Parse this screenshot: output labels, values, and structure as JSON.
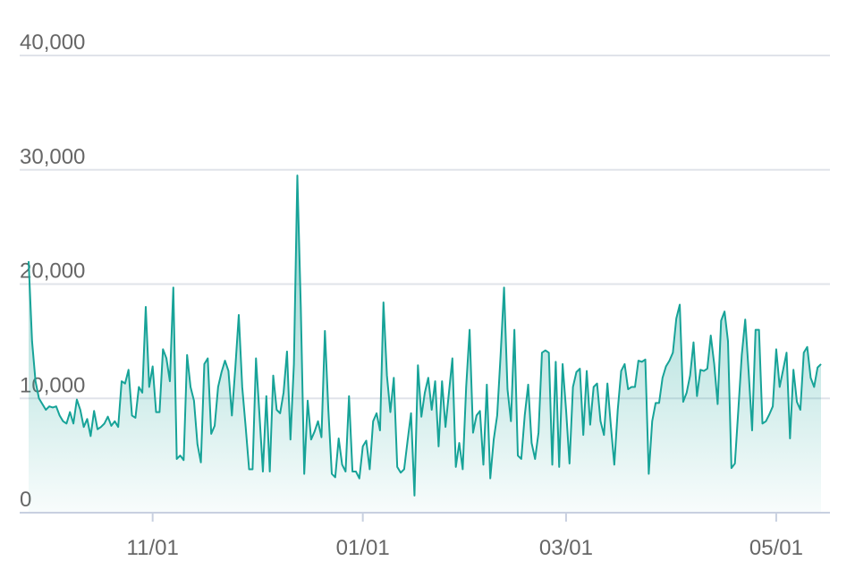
{
  "chart_data": {
    "type": "area",
    "color": "#17a398",
    "grid": true,
    "ylim": [
      0,
      40000
    ],
    "yticks": [
      0,
      {
        "value": 10000,
        "label": "10,000"
      },
      {
        "value": 20000,
        "label": "20,000"
      },
      {
        "value": 30000,
        "label": "30,000"
      },
      {
        "value": 40000,
        "label": "40,000"
      }
    ],
    "categories": [
      null,
      null,
      null,
      null,
      null,
      null,
      null,
      null,
      null,
      null,
      null,
      null,
      null,
      null,
      null,
      null,
      null,
      null,
      null,
      null,
      null,
      null,
      null,
      null,
      null,
      null,
      null,
      null,
      null,
      null,
      null,
      null,
      null,
      null,
      null,
      null,
      "11/01",
      null,
      null,
      null,
      null,
      null,
      null,
      null,
      null,
      null,
      null,
      null,
      null,
      null,
      null,
      null,
      null,
      null,
      null,
      null,
      null,
      null,
      null,
      null,
      null,
      null,
      null,
      null,
      null,
      null,
      null,
      null,
      null,
      null,
      null,
      null,
      null,
      null,
      null,
      null,
      null,
      null,
      null,
      null,
      null,
      null,
      null,
      null,
      null,
      null,
      null,
      null,
      null,
      null,
      null,
      null,
      null,
      null,
      null,
      null,
      null,
      "01/01",
      null,
      null,
      null,
      null,
      null,
      null,
      null,
      null,
      null,
      null,
      null,
      null,
      null,
      null,
      null,
      null,
      null,
      null,
      null,
      null,
      null,
      null,
      null,
      null,
      null,
      null,
      null,
      null,
      null,
      null,
      null,
      null,
      null,
      null,
      null,
      null,
      null,
      null,
      null,
      null,
      null,
      null,
      null,
      null,
      null,
      null,
      null,
      null,
      null,
      null,
      null,
      null,
      null,
      null,
      null,
      null,
      null,
      null,
      "03/01",
      null,
      null,
      null,
      null,
      null,
      null,
      null,
      null,
      null,
      null,
      null,
      null,
      null,
      null,
      null,
      null,
      null,
      null,
      null,
      null,
      null,
      null,
      null,
      null,
      null,
      null,
      null,
      null,
      null,
      null,
      null,
      null,
      null,
      null,
      null,
      null,
      null,
      null,
      null,
      null,
      null,
      null,
      null,
      null,
      null,
      null,
      null,
      null,
      null,
      null,
      null,
      null,
      null,
      null,
      null,
      null,
      null,
      null,
      null,
      null,
      "05/01",
      null,
      null,
      null,
      null,
      null,
      null,
      null,
      null,
      null,
      null,
      null,
      null,
      null
    ],
    "values": [
      22000,
      15000,
      11500,
      10000,
      9500,
      9000,
      9300,
      9200,
      9300,
      8500,
      8000,
      7800,
      8800,
      7800,
      9900,
      9000,
      7500,
      8200,
      6700,
      8900,
      7300,
      7500,
      7800,
      8400,
      7600,
      8000,
      7500,
      11500,
      11300,
      12500,
      8500,
      8300,
      11000,
      10500,
      18000,
      11000,
      12800,
      8800,
      8800,
      14300,
      13500,
      11500,
      19700,
      4700,
      5000,
      4600,
      13800,
      11000,
      9800,
      6000,
      4400,
      13000,
      13500,
      6900,
      7600,
      11000,
      12300,
      13300,
      12400,
      8500,
      12700,
      17300,
      11000,
      7500,
      3800,
      3800,
      13500,
      8600,
      3600,
      10200,
      3600,
      12000,
      9000,
      8700,
      10500,
      14100,
      6400,
      13000,
      29500,
      18000,
      3400,
      9800,
      6400,
      7100,
      8000,
      6600,
      15900,
      9000,
      3400,
      3100,
      6500,
      4200,
      3600,
      10200,
      3600,
      3600,
      3000,
      5800,
      6300,
      3800,
      8000,
      8700,
      7200,
      18400,
      12000,
      8800,
      11800,
      4000,
      3500,
      3800,
      6300,
      8700,
      1500,
      12900,
      8400,
      10500,
      11800,
      9000,
      11500,
      5800,
      11500,
      7500,
      10500,
      13500,
      4000,
      6100,
      3800,
      11000,
      16000,
      7000,
      8500,
      8900,
      4200,
      11200,
      3000,
      6400,
      8500,
      13800,
      19700,
      10800,
      8000,
      16000,
      5000,
      4700,
      8500,
      11200,
      6100,
      4700,
      7000,
      14000,
      14200,
      14000,
      4200,
      13200,
      4000,
      13000,
      9000,
      4300,
      11000,
      12300,
      12600,
      6800,
      12400,
      7700,
      11000,
      11300,
      8000,
      6800,
      11300,
      7600,
      4200,
      9000,
      12400,
      13000,
      10800,
      11000,
      11000,
      13300,
      13200,
      13400,
      3400,
      8000,
      9600,
      9600,
      11800,
      12800,
      13300,
      14000,
      17000,
      18200,
      9700,
      10500,
      12000,
      14900,
      10200,
      12500,
      12400,
      12600,
      15500,
      13000,
      9500,
      16800,
      17600,
      15000,
      3900,
      4300,
      9000,
      13800,
      16900,
      12300,
      7200,
      16000,
      16000,
      7800,
      8000,
      8600,
      9300,
      14300,
      11000,
      12500,
      14000,
      6500,
      12500,
      9700,
      9000,
      14000,
      14500,
      11800,
      11000,
      12700,
      13000
    ]
  }
}
